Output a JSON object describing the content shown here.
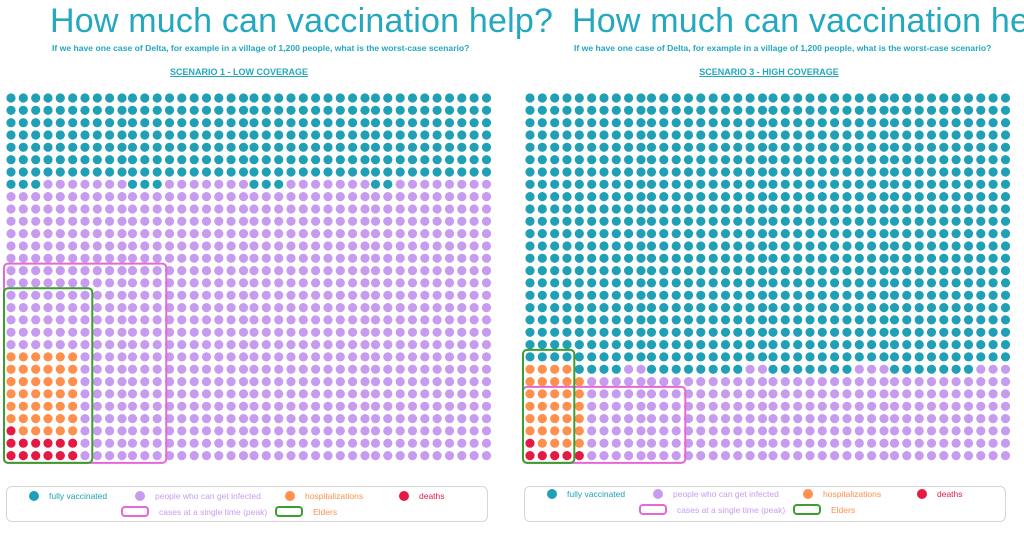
{
  "colors": {
    "vaccinated": "#1fa0b6",
    "susceptible": "#c79cf0",
    "hospitalized": "#ff8f4d",
    "death": "#e41a45",
    "peak_box": "#e667d6",
    "elders_box": "#3c9e2f",
    "title": "#23a8bf"
  },
  "legend": {
    "fully_vaccinated": "fully vaccinated",
    "susceptible": "people who can get infected",
    "hospitalizations": "hospitalizations",
    "deaths": "deaths",
    "peak": "cases at a single time (peak)",
    "elders": "Elders"
  },
  "panels": [
    {
      "title": "How much can vaccination help?",
      "subtitle": "If we have one case of Delta, for example in a village of 1,200 people, what is the worst-case scenario?",
      "scenario": "SCENARIO 1 - LOW COVERAGE"
    },
    {
      "title": "How much can vaccination help?",
      "subtitle": "If we have one case of Delta, for example in a village of 1,200 people, what is the worst-case scenario?",
      "scenario": "SCENARIO 3 - HIGH COVERAGE"
    }
  ],
  "chart_data": [
    {
      "type": "waffle",
      "title": "SCENARIO 1 - LOW COVERAGE",
      "population": 1200,
      "grid": {
        "blocks": 4,
        "rows": 30,
        "cols_per_block": 10
      },
      "categories": [
        "fully vaccinated",
        "people who can get infected",
        "hospitalizations",
        "deaths"
      ],
      "values": {
        "fully vaccinated": 291,
        "people who can get infected": 855,
        "hospitalizations": 41,
        "deaths": 13
      },
      "peak_cases": 306,
      "elders": 96
    },
    {
      "type": "waffle",
      "title": "SCENARIO 3 - HIGH COVERAGE",
      "population": 1200,
      "grid": {
        "blocks": 4,
        "rows": 30,
        "cols_per_block": 10
      },
      "categories": [
        "fully vaccinated",
        "people who can get infected",
        "hospitalizations",
        "deaths"
      ],
      "values": {
        "fully vaccinated": 910,
        "people who can get infected": 251,
        "hospitalizations": 33,
        "deaths": 6
      },
      "peak_cases": 104,
      "elders": 36
    }
  ]
}
